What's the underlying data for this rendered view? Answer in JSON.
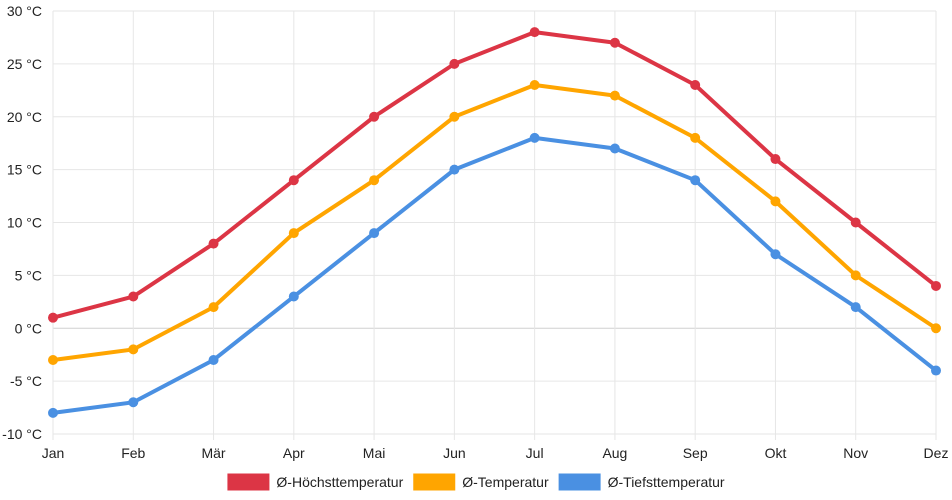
{
  "chart_data": {
    "type": "line",
    "title": "",
    "xlabel": "",
    "ylabel": "",
    "categories": [
      "Jan",
      "Feb",
      "Mär",
      "Apr",
      "Mai",
      "Jun",
      "Jul",
      "Aug",
      "Sep",
      "Okt",
      "Nov",
      "Dez"
    ],
    "y_unit": "°C",
    "ylim": [
      -10,
      30
    ],
    "y_ticks": [
      -10,
      -5,
      0,
      5,
      10,
      15,
      20,
      25,
      30
    ],
    "y_tick_labels": [
      "-10 °C",
      "-5 °C",
      "0 °C",
      "5 °C",
      "10 °C",
      "15 °C",
      "20 °C",
      "25 °C",
      "30 °C"
    ],
    "grid": true,
    "legend_position": "bottom",
    "series": [
      {
        "name": "Ø-Höchsttemperatur",
        "color": "#dc3545",
        "values": [
          1,
          3,
          8,
          14,
          20,
          25,
          28,
          27,
          23,
          16,
          10,
          4
        ]
      },
      {
        "name": "Ø-Temperatur",
        "color": "#ffa500",
        "values": [
          -3,
          -2,
          2,
          9,
          14,
          20,
          23,
          22,
          18,
          12,
          5,
          0
        ]
      },
      {
        "name": "Ø-Tiefsttemperatur",
        "color": "#4a90e2",
        "values": [
          -8,
          -7,
          -3,
          3,
          9,
          15,
          18,
          17,
          14,
          7,
          2,
          -4
        ]
      }
    ]
  }
}
